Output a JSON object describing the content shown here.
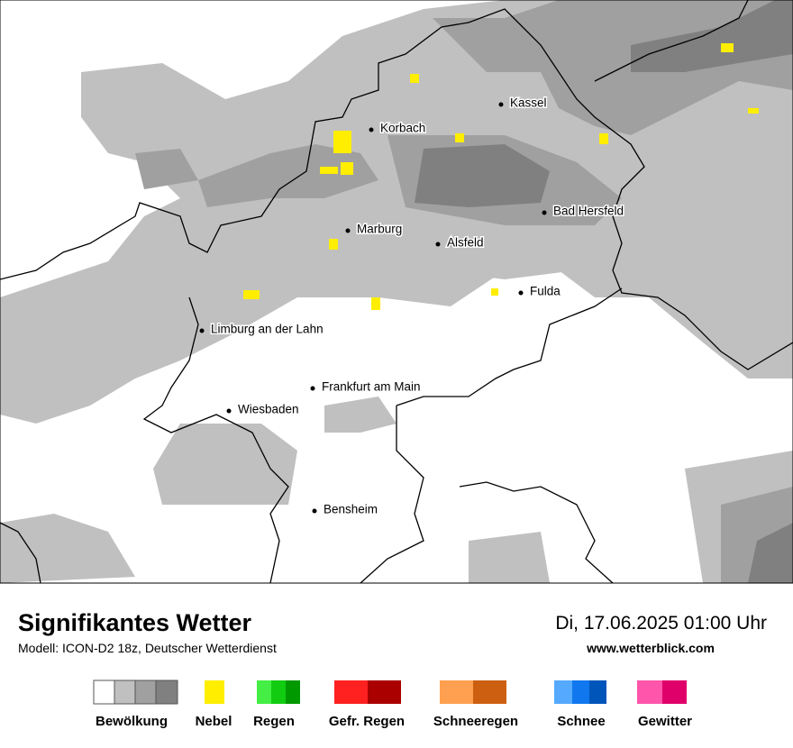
{
  "header": {
    "title": "Signifikantes Wetter",
    "subtitle": "Modell: ICON-D2 18z, Deutscher Wetterdienst",
    "datetime": "Di, 17.06.2025 01:00 Uhr",
    "source": "www.wetterblick.com"
  },
  "cities": [
    {
      "label": "Kassel"
    },
    {
      "label": "Korbach"
    },
    {
      "label": "Bad Hersfeld"
    },
    {
      "label": "Marburg"
    },
    {
      "label": "Alsfeld"
    },
    {
      "label": "Fulda"
    },
    {
      "label": "Limburg an der Lahn"
    },
    {
      "label": "Frankfurt am Main"
    },
    {
      "label": "Wiesbaden"
    },
    {
      "label": "Bensheim"
    }
  ],
  "legend": [
    {
      "label": "Bewölkung"
    },
    {
      "label": "Nebel"
    },
    {
      "label": "Regen"
    },
    {
      "label": "Gefr. Regen"
    },
    {
      "label": "Schneeregen"
    },
    {
      "label": "Schnee"
    },
    {
      "label": "Gewitter"
    }
  ]
}
